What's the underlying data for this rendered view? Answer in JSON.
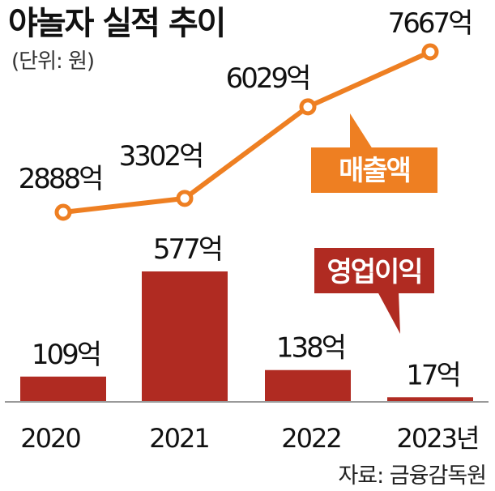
{
  "header": {
    "title": "야놀자 실적 추이",
    "unit": "(단위: 원)"
  },
  "footer": {
    "source": "자료: 금융감독원"
  },
  "colors": {
    "revenue": "#ee7f22",
    "operating_profit": "#b02b22",
    "axis": "#9a9a9a"
  },
  "chart_data": {
    "type": "bar+line",
    "categories": [
      "2020",
      "2021",
      "2022",
      "2023년"
    ],
    "series": [
      {
        "name": "매출액",
        "type": "line",
        "values": [
          2888,
          3302,
          6029,
          7667
        ],
        "labels": [
          "2888억",
          "3302억",
          "6029억",
          "7667억"
        ]
      },
      {
        "name": "영업이익",
        "type": "bar",
        "values": [
          109,
          577,
          138,
          17
        ],
        "labels": [
          "109억",
          "577억",
          "138억",
          "17억"
        ]
      }
    ]
  }
}
